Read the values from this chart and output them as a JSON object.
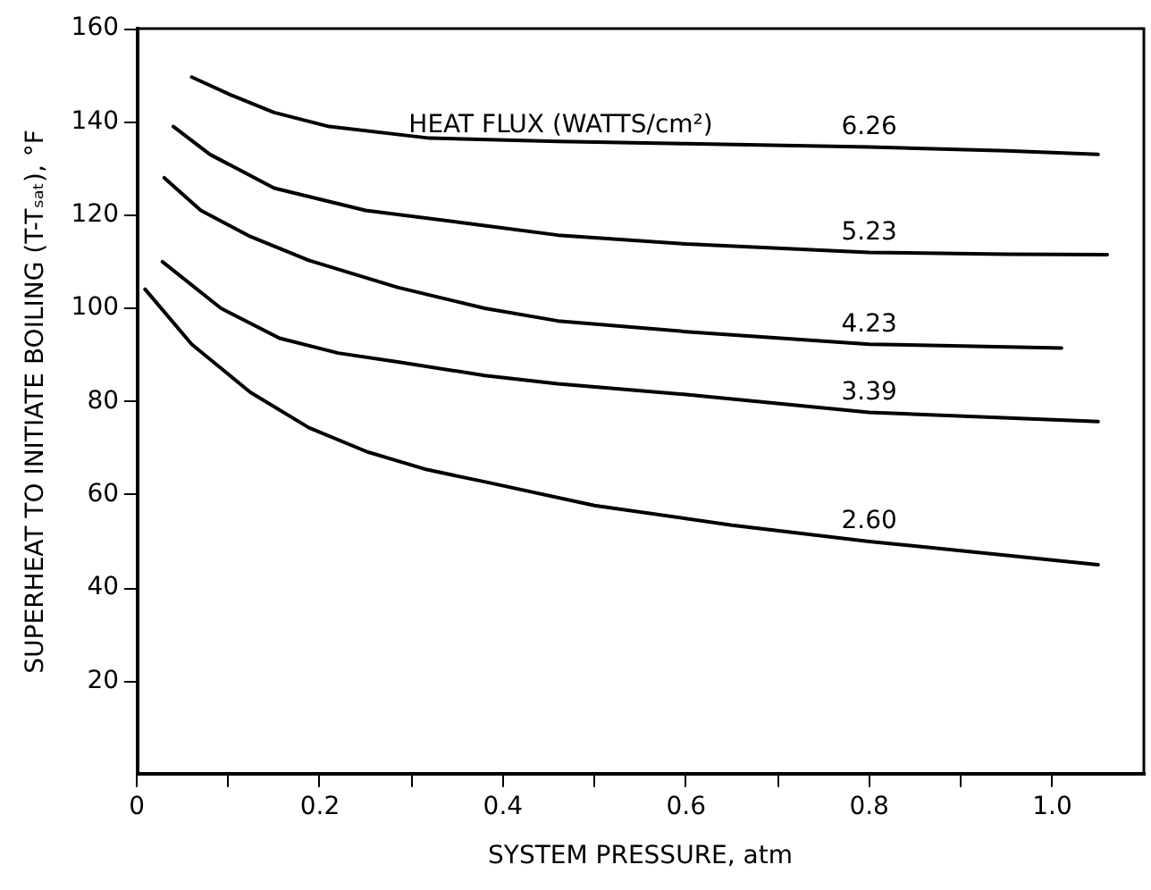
{
  "chart_data": {
    "type": "line",
    "xlabel": "SYSTEM PRESSURE, atm",
    "ylabel": "SUPERHEAT TO INITIATE BOILING (T-Tₛₐₜ), °F",
    "legend_title": "HEAT FLUX (WATTS/cm²)",
    "series": [
      {
        "name": "6.26",
        "color": "#000000",
        "x": [
          0.06,
          0.1,
          0.15,
          0.21,
          0.32,
          0.46,
          0.6,
          0.8,
          0.95,
          1.05
        ],
        "values": [
          149.6,
          146,
          142,
          139,
          136.5,
          135.8,
          135.3,
          134.6,
          133.8,
          133
        ]
      },
      {
        "name": "5.23",
        "color": "#000000",
        "x": [
          0.04,
          0.08,
          0.15,
          0.25,
          0.35,
          0.46,
          0.6,
          0.8,
          0.95,
          1.06
        ],
        "values": [
          139,
          133,
          125.8,
          121,
          118.5,
          115.7,
          113.8,
          112,
          111.6,
          111.5
        ]
      },
      {
        "name": "4.23",
        "color": "#000000",
        "x": [
          0.03,
          0.07,
          0.124,
          0.188,
          0.285,
          0.38,
          0.46,
          0.6,
          0.8,
          1.01
        ],
        "values": [
          128,
          121,
          115.4,
          110.3,
          104.5,
          100,
          97.3,
          95,
          92.3,
          91.5
        ]
      },
      {
        "name": "3.39",
        "color": "#000000",
        "x": [
          0.028,
          0.092,
          0.156,
          0.22,
          0.285,
          0.38,
          0.46,
          0.6,
          0.8,
          1.05
        ],
        "values": [
          110,
          100,
          93.6,
          90.4,
          88.5,
          85.6,
          83.8,
          81.5,
          77.7,
          75.7
        ]
      },
      {
        "name": "2.60",
        "color": "#000000",
        "x": [
          0.009,
          0.06,
          0.124,
          0.188,
          0.252,
          0.317,
          0.38,
          0.5,
          0.65,
          0.8,
          0.95,
          1.05
        ],
        "values": [
          104.1,
          92.3,
          82,
          74.4,
          69.2,
          65.4,
          62.8,
          57.7,
          53.5,
          50,
          47,
          45
        ]
      }
    ],
    "xlim": [
      0,
      1.1
    ],
    "ylim": [
      0,
      160
    ],
    "xticks": [
      0,
      {
        "value": 0.1,
        "label": null
      },
      0.2,
      {
        "value": 0.3,
        "label": null
      },
      0.4,
      {
        "value": 0.5,
        "label": null
      },
      0.6,
      {
        "value": 0.7,
        "label": null
      },
      0.8,
      {
        "value": 0.9,
        "label": null
      },
      {
        "value": 1.0,
        "label": "1.0"
      }
    ],
    "yticks": [
      20,
      40,
      60,
      80,
      100,
      120,
      140,
      160
    ],
    "grid": false,
    "legend": false,
    "marker": "none",
    "line_style": "solid"
  }
}
